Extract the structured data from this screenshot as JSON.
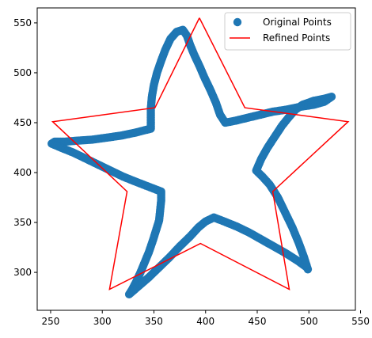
{
  "chart_data": {
    "type": "scatter",
    "xlim": [
      237,
      545
    ],
    "ylim": [
      262,
      565
    ],
    "x_ticks": [
      250,
      300,
      350,
      400,
      450,
      500,
      550
    ],
    "y_ticks": [
      300,
      350,
      400,
      450,
      500,
      550
    ],
    "grid": false,
    "legend_position": "top-right",
    "series": [
      {
        "name": "Original Points",
        "kind": "scatter",
        "color": "#1f77b4",
        "points": [
          [
            378,
            543
          ],
          [
            372,
            541
          ],
          [
            366,
            534
          ],
          [
            361,
            523
          ],
          [
            357,
            512
          ],
          [
            353,
            500
          ],
          [
            350,
            488
          ],
          [
            348,
            476
          ],
          [
            347,
            464
          ],
          [
            347,
            452
          ],
          [
            347,
            444
          ],
          [
            332,
            440
          ],
          [
            318,
            437
          ],
          [
            304,
            435
          ],
          [
            290,
            433
          ],
          [
            276,
            432
          ],
          [
            264,
            431
          ],
          [
            254,
            431
          ],
          [
            251,
            429
          ],
          [
            260,
            425
          ],
          [
            272,
            420
          ],
          [
            284,
            414
          ],
          [
            296,
            408
          ],
          [
            308,
            402
          ],
          [
            320,
            396
          ],
          [
            332,
            391
          ],
          [
            342,
            387
          ],
          [
            352,
            383
          ],
          [
            357,
            381
          ],
          [
            357,
            372
          ],
          [
            356,
            362
          ],
          [
            355,
            352
          ],
          [
            352,
            342
          ],
          [
            349,
            332
          ],
          [
            345,
            320
          ],
          [
            341,
            310
          ],
          [
            337,
            300
          ],
          [
            333,
            291
          ],
          [
            329,
            283
          ],
          [
            326,
            278
          ],
          [
            335,
            286
          ],
          [
            345,
            295
          ],
          [
            355,
            305
          ],
          [
            365,
            315
          ],
          [
            375,
            326
          ],
          [
            385,
            336
          ],
          [
            393,
            345
          ],
          [
            400,
            351
          ],
          [
            408,
            355
          ],
          [
            418,
            351
          ],
          [
            430,
            346
          ],
          [
            442,
            340
          ],
          [
            454,
            333
          ],
          [
            466,
            326
          ],
          [
            478,
            319
          ],
          [
            490,
            311
          ],
          [
            498,
            305
          ],
          [
            499,
            303
          ],
          [
            495,
            316
          ],
          [
            490,
            330
          ],
          [
            484,
            345
          ],
          [
            477,
            360
          ],
          [
            470,
            375
          ],
          [
            462,
            388
          ],
          [
            455,
            396
          ],
          [
            449,
            402
          ],
          [
            454,
            414
          ],
          [
            460,
            425
          ],
          [
            467,
            436
          ],
          [
            474,
            447
          ],
          [
            481,
            456
          ],
          [
            487,
            463
          ],
          [
            494,
            468
          ],
          [
            505,
            472
          ],
          [
            515,
            474
          ],
          [
            522,
            476
          ],
          [
            515,
            471
          ],
          [
            505,
            468
          ],
          [
            492,
            466
          ],
          [
            478,
            463
          ],
          [
            465,
            461
          ],
          [
            453,
            458
          ],
          [
            441,
            455
          ],
          [
            429,
            452
          ],
          [
            419,
            450
          ],
          [
            414,
            458
          ],
          [
            410,
            470
          ],
          [
            405,
            482
          ],
          [
            399,
            495
          ],
          [
            394,
            507
          ],
          [
            389,
            518
          ],
          [
            385,
            528
          ],
          [
            382,
            537
          ]
        ]
      },
      {
        "name": "Refined Points",
        "kind": "line",
        "color": "#ff0000",
        "points": [
          [
            394,
            555
          ],
          [
            438,
            465
          ],
          [
            538,
            451
          ],
          [
            465,
            381
          ],
          [
            481,
            283
          ],
          [
            395,
            329
          ],
          [
            307,
            283
          ],
          [
            324,
            381
          ],
          [
            252,
            451
          ],
          [
            351,
            465
          ],
          [
            394,
            555
          ]
        ]
      }
    ]
  }
}
